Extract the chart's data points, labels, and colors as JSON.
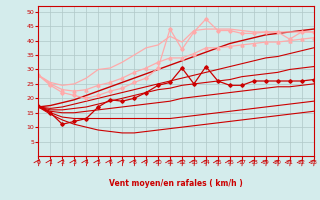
{
  "xlabel": "Vent moyen/en rafales ( km/h )",
  "xlim": [
    0,
    23
  ],
  "ylim": [
    0,
    52
  ],
  "yticks": [
    5,
    10,
    15,
    20,
    25,
    30,
    35,
    40,
    45,
    50
  ],
  "xticks": [
    0,
    1,
    2,
    3,
    4,
    5,
    6,
    7,
    8,
    9,
    10,
    11,
    12,
    13,
    14,
    15,
    16,
    17,
    18,
    19,
    20,
    21,
    22,
    23
  ],
  "bg_color": "#d4ecec",
  "grid_color": "#b0c8c8",
  "series": [
    {
      "x": [
        0,
        1,
        2,
        3,
        4,
        5,
        6,
        7,
        8,
        9,
        10,
        11,
        12,
        13,
        14,
        15,
        16,
        17,
        18,
        19,
        20,
        21,
        22,
        23
      ],
      "y": [
        17.5,
        15.0,
        11.0,
        12.0,
        13.0,
        17.0,
        19.5,
        19.0,
        20.0,
        22.0,
        24.5,
        25.5,
        30.5,
        25.0,
        31.0,
        26.0,
        24.5,
        24.5,
        26.0,
        26.0,
        26.0,
        26.0,
        26.0,
        26.5
      ],
      "color": "#cc0000",
      "marker": "D",
      "markersize": 1.8,
      "linewidth": 0.9,
      "alpha": 1.0
    },
    {
      "x": [
        0,
        1,
        2,
        3,
        4,
        5,
        6,
        7,
        8,
        9,
        10,
        11,
        12,
        13,
        14,
        15,
        16,
        17,
        18,
        19,
        20,
        21,
        22,
        23
      ],
      "y": [
        17.0,
        17.5,
        18.5,
        19.5,
        21.0,
        22.5,
        24.0,
        25.5,
        27.0,
        28.5,
        30.0,
        31.5,
        33.0,
        34.5,
        36.0,
        37.5,
        39.0,
        40.0,
        41.0,
        42.0,
        42.5,
        43.0,
        43.5,
        44.0
      ],
      "color": "#cc0000",
      "marker": null,
      "markersize": 0,
      "linewidth": 1.0,
      "alpha": 1.0
    },
    {
      "x": [
        0,
        1,
        2,
        3,
        4,
        5,
        6,
        7,
        8,
        9,
        10,
        11,
        12,
        13,
        14,
        15,
        16,
        17,
        18,
        19,
        20,
        21,
        22,
        23
      ],
      "y": [
        17.0,
        16.5,
        17.0,
        18.0,
        19.0,
        20.0,
        21.0,
        22.0,
        23.0,
        24.0,
        25.0,
        26.0,
        27.0,
        28.0,
        29.0,
        30.0,
        31.0,
        32.0,
        33.0,
        34.0,
        34.5,
        35.5,
        36.5,
        37.5
      ],
      "color": "#cc0000",
      "marker": null,
      "markersize": 0,
      "linewidth": 0.8,
      "alpha": 1.0
    },
    {
      "x": [
        0,
        1,
        2,
        3,
        4,
        5,
        6,
        7,
        8,
        9,
        10,
        11,
        12,
        13,
        14,
        15,
        16,
        17,
        18,
        19,
        20,
        21,
        22,
        23
      ],
      "y": [
        17.0,
        16.0,
        16.0,
        16.5,
        17.0,
        18.0,
        19.0,
        20.0,
        21.0,
        22.0,
        23.0,
        23.5,
        24.5,
        25.0,
        25.5,
        26.0,
        26.5,
        27.5,
        28.0,
        28.5,
        29.0,
        30.0,
        30.5,
        31.0
      ],
      "color": "#cc0000",
      "marker": null,
      "markersize": 0,
      "linewidth": 0.8,
      "alpha": 1.0
    },
    {
      "x": [
        0,
        1,
        2,
        3,
        4,
        5,
        6,
        7,
        8,
        9,
        10,
        11,
        12,
        13,
        14,
        15,
        16,
        17,
        18,
        19,
        20,
        21,
        22,
        23
      ],
      "y": [
        17.0,
        15.5,
        15.0,
        15.0,
        15.5,
        16.0,
        16.5,
        17.0,
        17.5,
        18.0,
        18.5,
        19.0,
        20.0,
        20.5,
        21.0,
        21.5,
        22.0,
        22.5,
        23.0,
        23.5,
        24.0,
        24.0,
        24.5,
        25.0
      ],
      "color": "#cc0000",
      "marker": null,
      "markersize": 0,
      "linewidth": 0.8,
      "alpha": 1.0
    },
    {
      "x": [
        0,
        1,
        2,
        3,
        4,
        5,
        6,
        7,
        8,
        9,
        10,
        11,
        12,
        13,
        14,
        15,
        16,
        17,
        18,
        19,
        20,
        21,
        22,
        23
      ],
      "y": [
        17.0,
        15.0,
        13.5,
        13.0,
        13.0,
        13.0,
        13.0,
        13.0,
        13.0,
        13.0,
        13.0,
        13.0,
        13.5,
        14.0,
        14.5,
        15.0,
        15.5,
        16.0,
        16.5,
        17.0,
        17.5,
        18.0,
        18.5,
        19.0
      ],
      "color": "#cc0000",
      "marker": null,
      "markersize": 0,
      "linewidth": 0.8,
      "alpha": 1.0
    },
    {
      "x": [
        0,
        1,
        2,
        3,
        4,
        5,
        6,
        7,
        8,
        9,
        10,
        11,
        12,
        13,
        14,
        15,
        16,
        17,
        18,
        19,
        20,
        21,
        22,
        23
      ],
      "y": [
        17.0,
        14.5,
        12.5,
        11.0,
        10.0,
        9.0,
        8.5,
        8.0,
        8.0,
        8.5,
        9.0,
        9.5,
        10.0,
        10.5,
        11.0,
        11.5,
        12.0,
        12.5,
        13.0,
        13.5,
        14.0,
        14.5,
        15.0,
        15.5
      ],
      "color": "#cc0000",
      "marker": null,
      "markersize": 0,
      "linewidth": 0.8,
      "alpha": 1.0
    },
    {
      "x": [
        0,
        1,
        2,
        3,
        4,
        5,
        6,
        7,
        8,
        9,
        10,
        11,
        12,
        13,
        14,
        15,
        16,
        17,
        18,
        19,
        20,
        21,
        22,
        23
      ],
      "y": [
        28.0,
        24.5,
        22.0,
        21.0,
        20.0,
        21.0,
        22.5,
        23.5,
        25.5,
        27.0,
        30.5,
        44.0,
        37.0,
        43.0,
        47.5,
        43.5,
        43.5,
        42.5,
        42.5,
        43.0,
        43.0,
        40.5,
        43.0,
        43.0
      ],
      "color": "#ffaaaa",
      "marker": "D",
      "markersize": 1.8,
      "linewidth": 0.9,
      "alpha": 1.0
    },
    {
      "x": [
        0,
        1,
        2,
        3,
        4,
        5,
        6,
        7,
        8,
        9,
        10,
        11,
        12,
        13,
        14,
        15,
        16,
        17,
        18,
        19,
        20,
        21,
        22,
        23
      ],
      "y": [
        28.0,
        25.5,
        24.5,
        25.0,
        27.0,
        30.0,
        30.5,
        32.5,
        35.0,
        37.5,
        38.5,
        41.5,
        39.5,
        43.5,
        44.0,
        44.0,
        44.0,
        43.5,
        43.0,
        43.0,
        43.0,
        43.0,
        43.0,
        43.0
      ],
      "color": "#ffaaaa",
      "marker": null,
      "markersize": 0,
      "linewidth": 0.9,
      "alpha": 1.0
    },
    {
      "x": [
        0,
        1,
        2,
        3,
        4,
        5,
        6,
        7,
        8,
        9,
        10,
        11,
        12,
        13,
        14,
        15,
        16,
        17,
        18,
        19,
        20,
        21,
        22,
        23
      ],
      "y": [
        28.0,
        25.0,
        23.0,
        22.5,
        23.0,
        24.5,
        25.5,
        27.0,
        29.0,
        30.5,
        32.5,
        34.0,
        34.0,
        35.5,
        37.5,
        37.5,
        38.0,
        38.5,
        39.0,
        39.5,
        39.5,
        40.0,
        40.5,
        41.0
      ],
      "color": "#ffaaaa",
      "marker": "^",
      "markersize": 2.2,
      "linewidth": 0.9,
      "alpha": 1.0
    }
  ]
}
